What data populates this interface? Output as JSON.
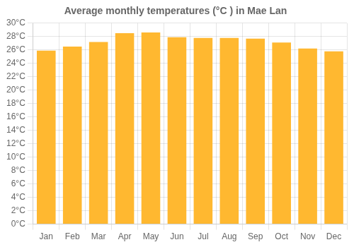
{
  "chart_data": {
    "type": "bar",
    "title": "Average monthly temperatures (°C ) in Mae Lan",
    "categories": [
      "Jan",
      "Feb",
      "Mar",
      "Apr",
      "May",
      "Jun",
      "Jul",
      "Aug",
      "Sep",
      "Oct",
      "Nov",
      "Dec"
    ],
    "values": [
      25.9,
      26.5,
      27.2,
      28.5,
      28.6,
      27.9,
      27.8,
      27.8,
      27.7,
      27.1,
      26.2,
      25.8
    ],
    "color": "#FFB830",
    "ylim": [
      0,
      30
    ],
    "yticks": [
      {
        "value": 0,
        "label": "0°C"
      },
      {
        "value": 2,
        "label": "2°C"
      },
      {
        "value": 4,
        "label": "4°C"
      },
      {
        "value": 6,
        "label": "6°C"
      },
      {
        "value": 8,
        "label": "8°C"
      },
      {
        "value": 10,
        "label": "10°C"
      },
      {
        "value": 12,
        "label": "12°C"
      },
      {
        "value": 14,
        "label": "14°C"
      },
      {
        "value": 16,
        "label": "16°C"
      },
      {
        "value": 18,
        "label": "18°C"
      },
      {
        "value": 20,
        "label": "20°C"
      },
      {
        "value": 22,
        "label": "22°C"
      },
      {
        "value": 24,
        "label": "24°C"
      },
      {
        "value": 26,
        "label": "26°C"
      },
      {
        "value": 28,
        "label": "28°C"
      },
      {
        "value": 30,
        "label": "30°C"
      }
    ],
    "grid": true
  }
}
